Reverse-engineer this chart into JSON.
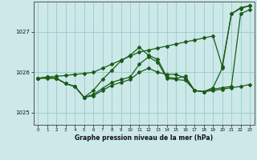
{
  "title": "Graphe pression niveau de la mer (hPa)",
  "bg_color": "#cce8e8",
  "grid_color": "#99cccc",
  "line_color": "#1a5c1a",
  "xlim": [
    -0.5,
    23.5
  ],
  "ylim": [
    1024.7,
    1027.75
  ],
  "yticks": [
    1025,
    1026,
    1027
  ],
  "xticks": [
    0,
    1,
    2,
    3,
    4,
    5,
    6,
    7,
    8,
    9,
    10,
    11,
    12,
    13,
    14,
    15,
    16,
    17,
    18,
    19,
    20,
    21,
    22,
    23
  ],
  "line_a": [
    1025.85,
    1025.88,
    1025.9,
    1025.92,
    1025.95,
    1025.97,
    1026.0,
    1026.1,
    1026.2,
    1026.3,
    1026.4,
    1026.5,
    1026.55,
    1026.6,
    1026.65,
    1026.7,
    1026.75,
    1026.8,
    1026.85,
    1026.9,
    1026.15,
    1027.45,
    1027.6,
    1027.65
  ],
  "line_b": [
    1025.85,
    1025.85,
    1025.85,
    1025.72,
    1025.65,
    1025.38,
    1025.45,
    1025.6,
    1025.75,
    1025.82,
    1025.88,
    1026.2,
    1026.38,
    1026.25,
    1025.85,
    1025.82,
    1025.8,
    1025.55,
    1025.52,
    1025.58,
    1025.62,
    1025.65,
    1027.45,
    1027.55
  ],
  "line_c": [
    1025.85,
    1025.88,
    1025.85,
    1025.72,
    1025.65,
    1025.38,
    1025.55,
    1025.82,
    1026.05,
    1026.28,
    1026.42,
    1026.62,
    1026.42,
    1026.32,
    1025.88,
    1025.85,
    1025.9,
    1025.55,
    1025.52,
    1025.62,
    1026.1,
    1027.45,
    1027.58,
    1027.65
  ],
  "line_d": [
    1025.85,
    1025.88,
    1025.85,
    1025.72,
    1025.65,
    1025.38,
    1025.42,
    1025.55,
    1025.68,
    1025.75,
    1025.82,
    1026.0,
    1026.1,
    1026.0,
    1025.95,
    1025.95,
    1025.85,
    1025.55,
    1025.52,
    1025.55,
    1025.58,
    1025.62,
    1025.65,
    1025.7
  ]
}
